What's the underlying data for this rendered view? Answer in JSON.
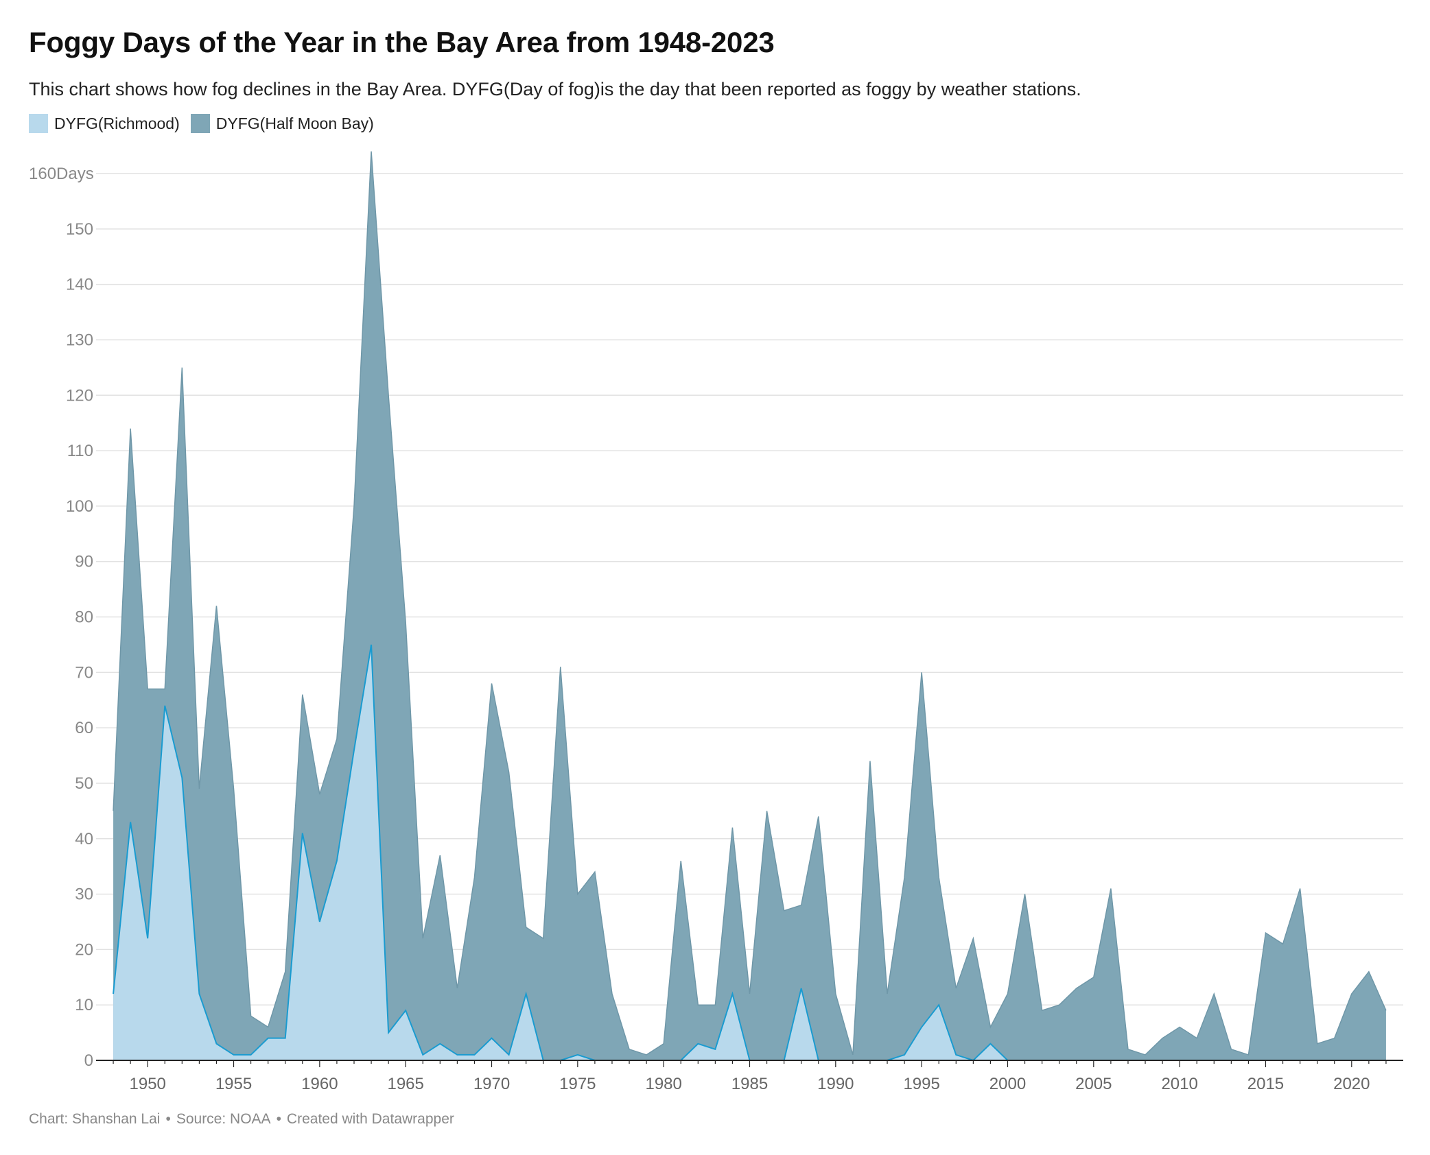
{
  "header": {
    "title": "Foggy Days of the Year in the Bay Area from 1948-2023",
    "subtitle": "This chart shows how fog declines in the Bay Area. DYFG(Day of fog)is the day that been reported as foggy by weather stations."
  },
  "footer": {
    "credit": "Chart: Shanshan Lai",
    "source": "Source: NOAA",
    "tool": "Created with Datawrapper",
    "separator": "•"
  },
  "colors": {
    "richmond_fill": "#b8d9ec",
    "richmond_line": "#1a9bd0",
    "halfmoon_fill": "#7fa6b6",
    "halfmoon_line": "#6f97a8",
    "grid": "#e2e2e2",
    "axis": "#222222"
  },
  "chart_data": {
    "type": "area",
    "title": "Foggy Days of the Year in the Bay Area from 1948-2023",
    "subtitle": "This chart shows how fog declines in the Bay Area. DYFG(Day of fog)is the day that been reported as foggy by weather stations.",
    "xlabel": "",
    "ylabel": "",
    "x": [
      1948,
      1949,
      1950,
      1951,
      1952,
      1953,
      1954,
      1955,
      1956,
      1957,
      1958,
      1959,
      1960,
      1961,
      1962,
      1963,
      1964,
      1965,
      1966,
      1967,
      1968,
      1969,
      1970,
      1971,
      1972,
      1973,
      1974,
      1975,
      1976,
      1977,
      1978,
      1979,
      1980,
      1981,
      1982,
      1983,
      1984,
      1985,
      1986,
      1987,
      1988,
      1989,
      1990,
      1991,
      1992,
      1993,
      1994,
      1995,
      1996,
      1997,
      1998,
      1999,
      2000,
      2001,
      2002,
      2003,
      2004,
      2005,
      2006,
      2007,
      2008,
      2009,
      2010,
      2011,
      2012,
      2013,
      2014,
      2015,
      2016,
      2017,
      2018,
      2019,
      2020,
      2021,
      2022
    ],
    "series": [
      {
        "name": "DYFG(Richmood)",
        "values": [
          12,
          43,
          22,
          64,
          51,
          12,
          3,
          1,
          1,
          4,
          4,
          41,
          25,
          36,
          56,
          75,
          5,
          9,
          1,
          3,
          1,
          1,
          4,
          1,
          12,
          0,
          0,
          1,
          0,
          0,
          0,
          0,
          0,
          0,
          3,
          2,
          12,
          0,
          0,
          0,
          13,
          0,
          0,
          0,
          0,
          0,
          1,
          6,
          10,
          1,
          0,
          3,
          0,
          0,
          0,
          0,
          0,
          0,
          0,
          0,
          0,
          0,
          0,
          0,
          0,
          0,
          0,
          0,
          0,
          0,
          0,
          0,
          0,
          0,
          0
        ]
      },
      {
        "name": "DYFG(Half Moon Bay)",
        "values": [
          45,
          114,
          67,
          67,
          125,
          49,
          82,
          49,
          8,
          6,
          16,
          66,
          48,
          58,
          100,
          164,
          120,
          79,
          22,
          37,
          13,
          33,
          68,
          52,
          24,
          22,
          71,
          30,
          34,
          12,
          2,
          1,
          3,
          36,
          10,
          10,
          42,
          12,
          45,
          27,
          28,
          44,
          12,
          1,
          54,
          12,
          33,
          70,
          33,
          13,
          22,
          6,
          12,
          30,
          9,
          10,
          13,
          15,
          31,
          2,
          1,
          4,
          6,
          4,
          12,
          2,
          1,
          23,
          21,
          31,
          3,
          4,
          12,
          16,
          9
        ]
      }
    ],
    "x_ticks": [
      "1950",
      "1955",
      "1960",
      "1965",
      "1970",
      "1975",
      "1980",
      "1985",
      "1990",
      "1995",
      "2000",
      "2005",
      "2010",
      "2015",
      "2020"
    ],
    "y_ticks": [
      "0",
      "10",
      "20",
      "30",
      "40",
      "50",
      "60",
      "70",
      "80",
      "90",
      "100",
      "110",
      "120",
      "130",
      "140",
      "150",
      "160Days"
    ],
    "xlim": [
      1947,
      2023
    ],
    "ylim": [
      0,
      160
    ],
    "grid": true,
    "legend_position": "top-left"
  }
}
